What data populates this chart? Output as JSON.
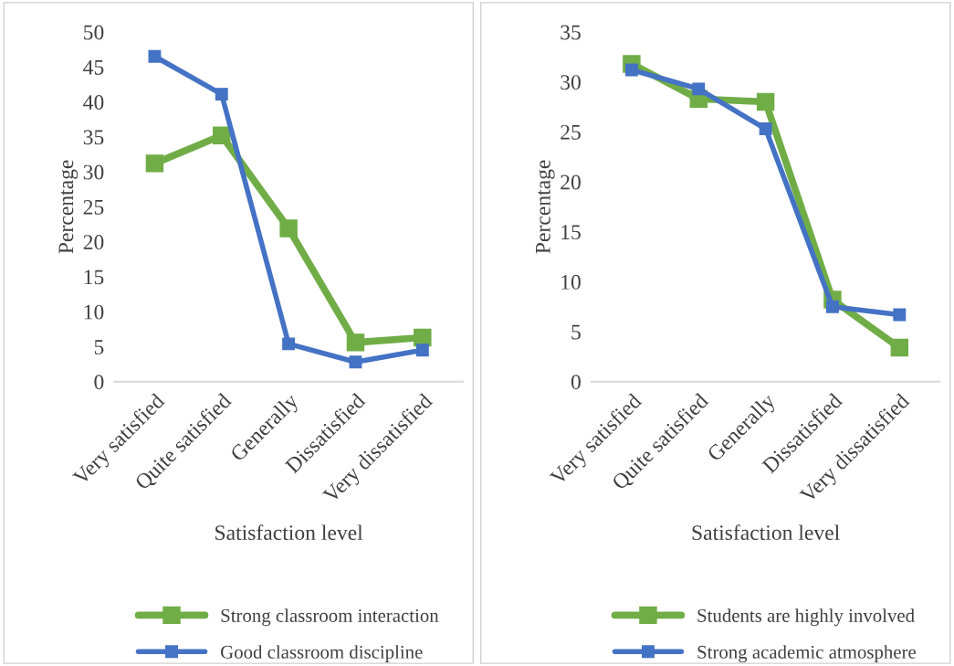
{
  "chart_data": [
    {
      "type": "line",
      "xlabel": "Satisfaction level",
      "ylabel": "Percentage",
      "categories": [
        "Very satisfied",
        "Quite satisfied",
        "Generally",
        "Dissatisfied",
        "Very dissatisfied"
      ],
      "series": [
        {
          "name": "Strong classroom interaction",
          "color": "#70ad47",
          "values": [
            31.2,
            35.2,
            21.9,
            5.6,
            6.3
          ]
        },
        {
          "name": "Good classroom discipline",
          "color": "#4472c4",
          "values": [
            46.5,
            41.1,
            5.4,
            2.8,
            4.5
          ]
        }
      ],
      "ylim": [
        0,
        50
      ],
      "yticks": [
        0,
        5,
        10,
        15,
        20,
        25,
        30,
        35,
        40,
        45,
        50
      ],
      "grid": false,
      "legend": "bottom",
      "marker": "square",
      "line_style": "solid"
    },
    {
      "type": "line",
      "xlabel": "Satisfaction level",
      "ylabel": "Percentage",
      "categories": [
        "Very satisfied",
        "Quite satisfied",
        "Generally",
        "Dissatisfied",
        "Very dissatisfied"
      ],
      "series": [
        {
          "name": "Students are highly involved",
          "color": "#70ad47",
          "values": [
            31.8,
            28.3,
            28.0,
            8.2,
            3.4
          ]
        },
        {
          "name": "Strong academic atmosphere",
          "color": "#4472c4",
          "values": [
            31.2,
            29.3,
            25.3,
            7.5,
            6.7
          ]
        }
      ],
      "ylim": [
        0,
        35
      ],
      "yticks": [
        0,
        5,
        10,
        15,
        20,
        25,
        30,
        35
      ],
      "grid": false,
      "legend": "bottom",
      "marker": "square",
      "line_style": "solid"
    }
  ]
}
